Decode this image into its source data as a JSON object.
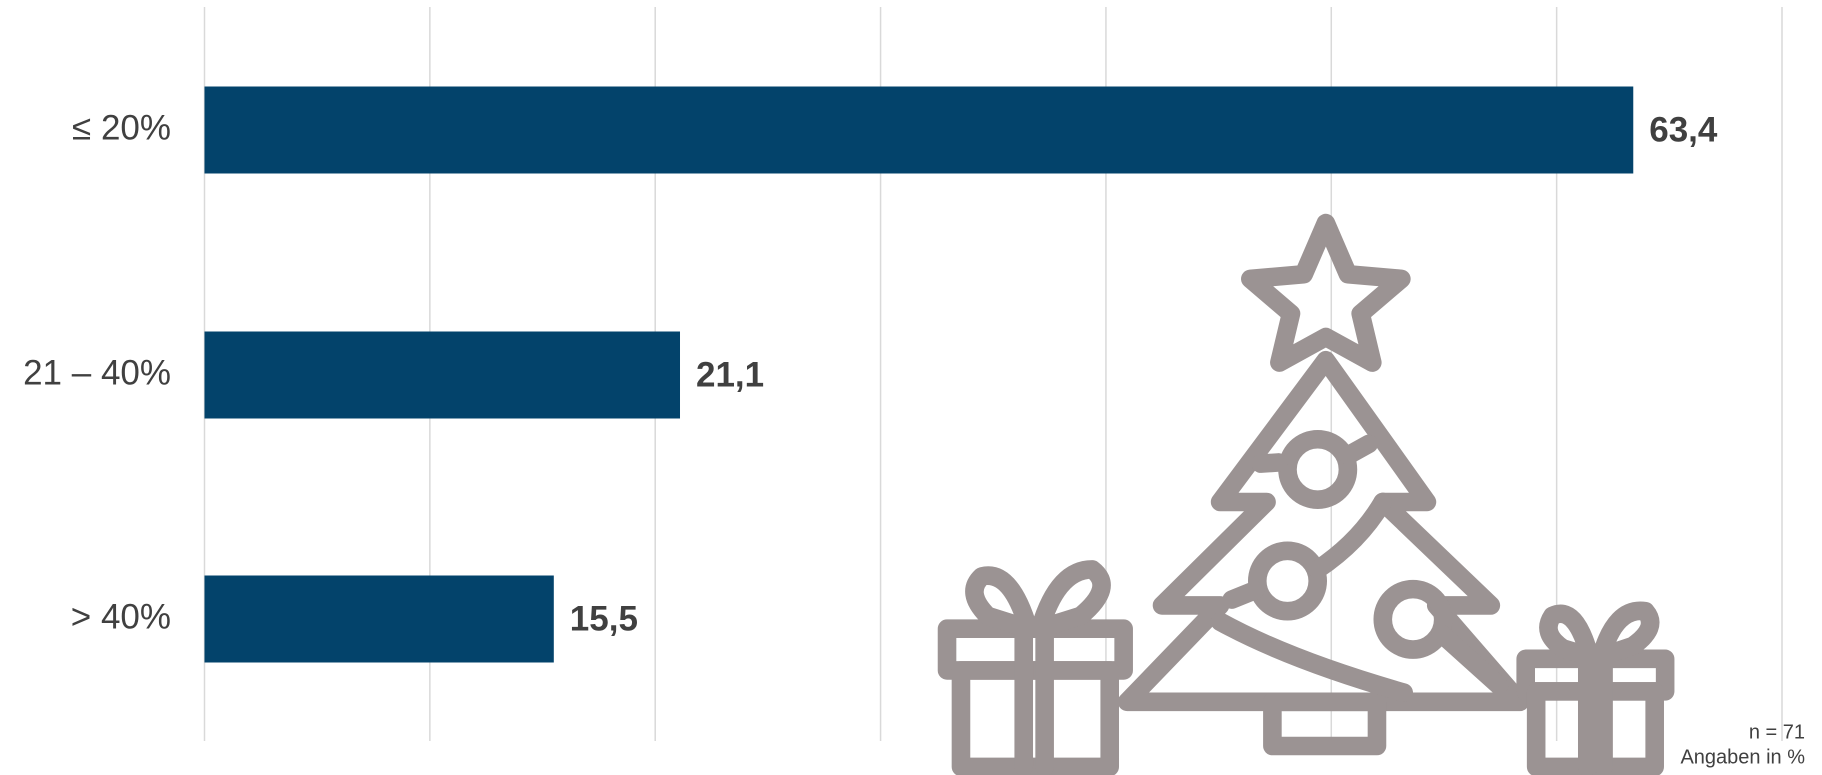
{
  "chart_data": {
    "type": "bar",
    "orientation": "horizontal",
    "categories": [
      "≤ 20%",
      "21 – 40%",
      "> 40%"
    ],
    "values": [
      63.4,
      21.1,
      15.5
    ],
    "value_labels": [
      "63,4",
      "21,1",
      "15,5"
    ],
    "color": "#03436b",
    "xlim": [
      0,
      70
    ],
    "xticks": [
      0,
      10,
      20,
      30,
      40,
      50,
      60,
      70
    ],
    "grid": true,
    "notes": [
      "n = 71",
      "Angaben in %"
    ]
  }
}
